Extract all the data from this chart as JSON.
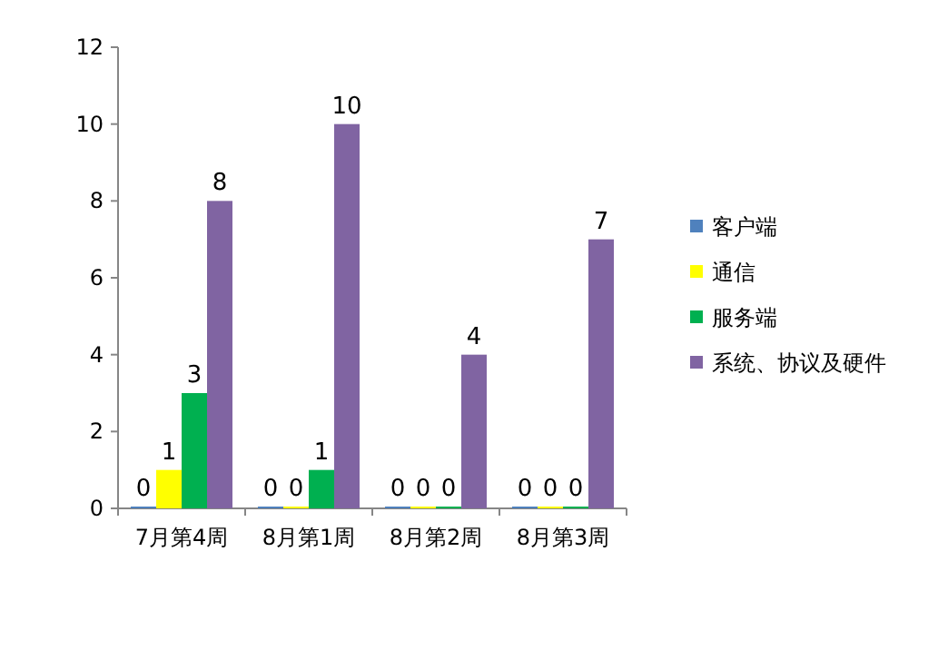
{
  "chart_data": {
    "type": "bar",
    "categories": [
      "7月第4周",
      "8月第1周",
      "8月第2周",
      "8月第3周"
    ],
    "series": [
      {
        "name": "客户端",
        "color": "#4f81bd",
        "values": [
          0,
          0,
          0,
          0
        ]
      },
      {
        "name": "通信",
        "color": "#ffff00",
        "values": [
          1,
          0,
          0,
          0
        ]
      },
      {
        "name": "服务端",
        "color": "#00b050",
        "values": [
          3,
          1,
          0,
          0
        ]
      },
      {
        "name": "系统、协议及硬件",
        "color": "#8064a2",
        "values": [
          8,
          10,
          4,
          7
        ]
      }
    ],
    "ylim": [
      0,
      12
    ],
    "yticks": [
      0,
      2,
      4,
      6,
      8,
      10,
      12
    ],
    "data_labels": true,
    "legend": "right",
    "grid": false
  }
}
